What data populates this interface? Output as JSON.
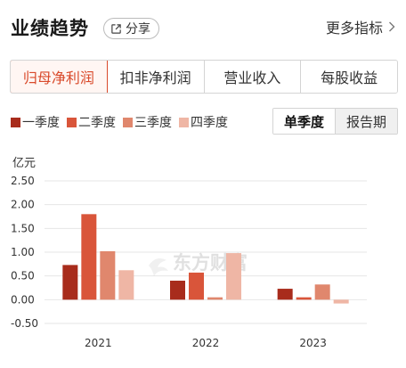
{
  "header": {
    "title": "业绩趋势",
    "share_label": "分享",
    "more_label": "更多指标"
  },
  "tabs": [
    {
      "label": "归母净利润",
      "active": true
    },
    {
      "label": "扣非净利润",
      "active": false
    },
    {
      "label": "营业收入",
      "active": false
    },
    {
      "label": "每股收益",
      "active": false
    }
  ],
  "period": {
    "options": [
      {
        "label": "单季度",
        "active": true
      },
      {
        "label": "报告期",
        "active": false
      }
    ]
  },
  "watermark": "东方财富",
  "chart_data": {
    "type": "bar",
    "unit_label": "亿元",
    "categories": [
      "2021",
      "2022",
      "2023"
    ],
    "series": [
      {
        "name": "一季度",
        "color": "#a82c1c",
        "values": [
          0.73,
          0.4,
          0.23
        ]
      },
      {
        "name": "二季度",
        "color": "#d9553a",
        "values": [
          1.8,
          0.57,
          0.05
        ]
      },
      {
        "name": "三季度",
        "color": "#e0876d",
        "values": [
          1.02,
          0.05,
          0.32
        ]
      },
      {
        "name": "四季度",
        "color": "#efb6a5",
        "values": [
          0.62,
          0.98,
          -0.08
        ]
      }
    ],
    "y_ticks": [
      "2.50",
      "2.00",
      "1.50",
      "1.00",
      "0.50",
      "0.00",
      "-0.50"
    ],
    "ylim": [
      -0.5,
      2.5
    ],
    "grid": true,
    "legend_position": "top-left"
  }
}
